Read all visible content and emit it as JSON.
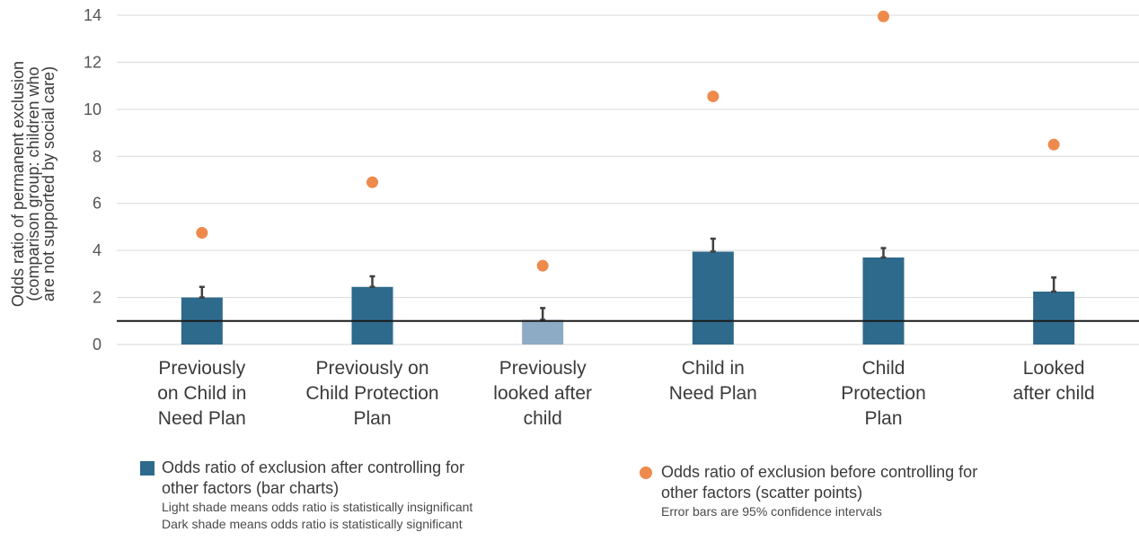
{
  "chart_data": {
    "type": "bar",
    "ylabel": "Odds ratio of permanent exclusion (comparison group: children who are not supported by social care)",
    "ylabel_lines": [
      "Odds ratio of permanent exclusion",
      "(comparison group: children who",
      "are not supported by social care)"
    ],
    "ylim": [
      0,
      14
    ],
    "yticks": [
      0,
      2,
      4,
      6,
      8,
      10,
      12,
      14
    ],
    "grid": true,
    "reference_line": 1,
    "categories": [
      [
        "Previously",
        "on Child in",
        "Need Plan"
      ],
      [
        "Previously on",
        "Child Protection",
        "Plan"
      ],
      [
        "Previously",
        "looked after",
        "child"
      ],
      [
        "Child in",
        "Need Plan"
      ],
      [
        "Child",
        "Protection",
        "Plan"
      ],
      [
        "Looked",
        "after child"
      ]
    ],
    "series": [
      {
        "name": "Odds ratio of exclusion after controlling for other factors (bar charts)",
        "values": [
          2.0,
          2.45,
          1.05,
          3.95,
          3.7,
          2.25
        ],
        "ci_upper": [
          2.45,
          2.9,
          1.55,
          4.5,
          4.1,
          2.85
        ],
        "significant": [
          true,
          true,
          false,
          true,
          true,
          true
        ]
      },
      {
        "name": "Odds ratio of exclusion before controlling for other factors (scatter points)",
        "values": [
          4.75,
          6.9,
          3.35,
          10.55,
          13.95,
          8.5
        ]
      }
    ],
    "colors": {
      "bar_significant": "#2e6a8c",
      "bar_insignificant": "#8dabc4",
      "scatter": "#ed8a4c",
      "grid": "#d9d9d9",
      "reference": "#1a1a1a",
      "error": "#404040"
    },
    "legend": {
      "placement": "bottom",
      "bar_label_lines": [
        "Odds ratio of exclusion after controlling for",
        "other factors (bar charts)"
      ],
      "bar_note_1": "Light shade means odds ratio is statistically insignificant",
      "bar_note_2": "Dark shade means odds ratio is statistically significant",
      "scatter_label_lines": [
        "Odds ratio of exclusion before controlling for",
        "other factors (scatter points)"
      ],
      "scatter_note": "Error bars are 95% confidence intervals"
    }
  }
}
